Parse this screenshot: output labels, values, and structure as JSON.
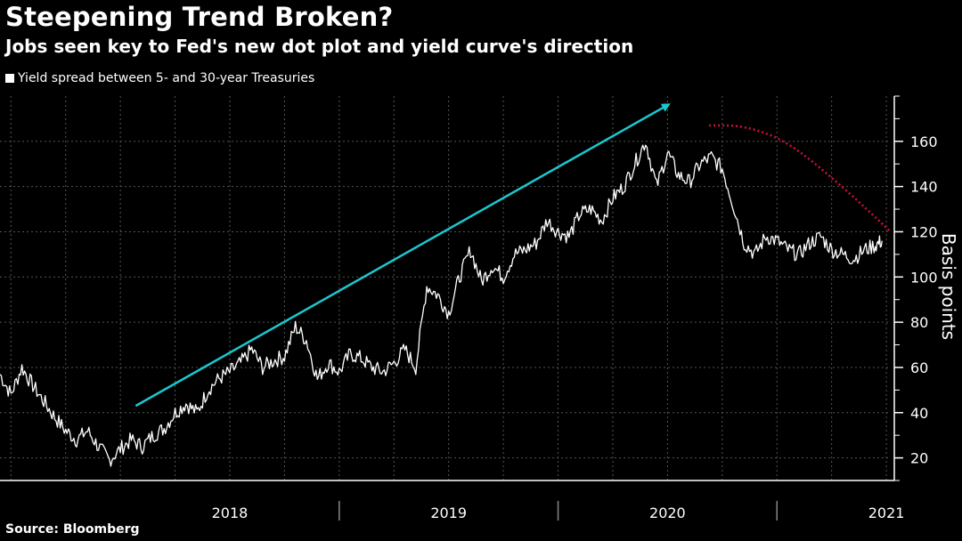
{
  "header": {
    "title": "Steepening Trend Broken?",
    "subtitle": "Jobs seen key to Fed's new dot plot and yield curve's direction"
  },
  "legend": {
    "label": "Yield spread between 5- and 30-year Treasuries"
  },
  "footer": {
    "source": "Source: Bloomberg"
  },
  "colors": {
    "background": "#000000",
    "line": "#ffffff",
    "trend_arrow": "#1cc7d0",
    "rollover_curve": "#d0103a",
    "grid": "#555555"
  },
  "chart_data": {
    "type": "line",
    "title": "Steepening Trend Broken?",
    "subtitle": "Jobs seen key to Fed's new dot plot and yield curve's direction",
    "ylabel": "Basis points",
    "xlabel": "",
    "ylim": [
      10,
      180
    ],
    "yticks": [
      20,
      40,
      60,
      80,
      100,
      120,
      140,
      160
    ],
    "xlim": [
      2017.45,
      2021.52
    ],
    "x_categories": [
      "2018",
      "2019",
      "2020",
      "2021"
    ],
    "grid": true,
    "series": [
      {
        "name": "Yield spread between 5- and 30-year Treasuries",
        "x": [
          2017.45,
          2017.5,
          2017.55,
          2017.6,
          2017.65,
          2017.7,
          2017.75,
          2017.8,
          2017.85,
          2017.9,
          2017.95,
          2018.0,
          2018.05,
          2018.1,
          2018.15,
          2018.2,
          2018.25,
          2018.3,
          2018.35,
          2018.4,
          2018.45,
          2018.5,
          2018.55,
          2018.6,
          2018.65,
          2018.7,
          2018.75,
          2018.8,
          2018.85,
          2018.9,
          2018.95,
          2019.0,
          2019.05,
          2019.1,
          2019.15,
          2019.2,
          2019.25,
          2019.3,
          2019.35,
          2019.4,
          2019.45,
          2019.5,
          2019.55,
          2019.6,
          2019.65,
          2019.7,
          2019.75,
          2019.8,
          2019.85,
          2019.9,
          2019.95,
          2020.0,
          2020.05,
          2020.1,
          2020.15,
          2020.2,
          2020.25,
          2020.3,
          2020.35,
          2020.4,
          2020.45,
          2020.5,
          2020.55,
          2020.6,
          2020.65,
          2020.7,
          2020.75,
          2020.8,
          2020.85,
          2020.9,
          2020.95,
          2021.0,
          2021.05,
          2021.1,
          2021.15,
          2021.2,
          2021.25,
          2021.3,
          2021.35,
          2021.4,
          2021.45,
          2021.48
        ],
        "values": [
          57,
          48,
          60,
          52,
          45,
          38,
          32,
          28,
          32,
          25,
          19,
          24,
          28,
          25,
          30,
          33,
          40,
          44,
          40,
          50,
          55,
          58,
          62,
          68,
          60,
          63,
          65,
          78,
          72,
          55,
          62,
          58,
          66,
          64,
          60,
          58,
          62,
          68,
          60,
          96,
          92,
          84,
          100,
          112,
          98,
          105,
          100,
          110,
          112,
          115,
          125,
          120,
          118,
          128,
          130,
          125,
          135,
          140,
          150,
          160,
          140,
          155,
          145,
          142,
          150,
          153,
          148,
          132,
          115,
          110,
          118,
          116,
          112,
          110,
          115,
          118,
          112,
          110,
          108,
          112,
          114,
          116
        ]
      }
    ],
    "annotations": [
      {
        "type": "arrow",
        "label": "trend",
        "from": [
          2018.07,
          43
        ],
        "to": [
          2020.5,
          176
        ]
      },
      {
        "type": "dotted-curve",
        "label": "rollover",
        "points": [
          [
            2020.69,
            167
          ],
          [
            2020.85,
            167
          ],
          [
            2021.05,
            160
          ],
          [
            2021.3,
            140
          ],
          [
            2021.52,
            120
          ]
        ]
      }
    ]
  }
}
